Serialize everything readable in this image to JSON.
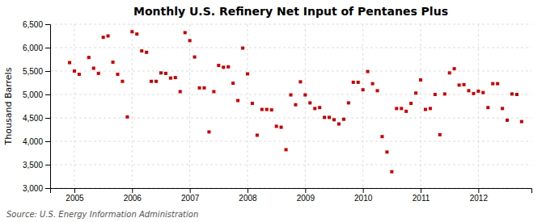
{
  "chart_data": {
    "type": "scatter",
    "title": "Monthly U.S. Refinery Net Input of Pentanes Plus",
    "y_label": "Thousand Barrels",
    "annotations": [
      "Source: U.S. Energy Information Administration"
    ],
    "color": "#cc0000",
    "marker": "square",
    "grid": true,
    "xlim": [
      2004.58,
      2012.92
    ],
    "xticks": [
      2005,
      2006,
      2007,
      2008,
      2009,
      2010,
      2011,
      2012
    ],
    "ylim": [
      3000,
      6500
    ],
    "yticks": [
      {
        "value": 3000,
        "label": "3,000"
      },
      {
        "value": 3500,
        "label": "3,500"
      },
      {
        "value": 4000,
        "label": "4,000"
      },
      {
        "value": 4500,
        "label": "4,500"
      },
      {
        "value": 5000,
        "label": "5,000"
      },
      {
        "value": 5500,
        "label": "5,500"
      },
      {
        "value": 6000,
        "label": "6,000"
      },
      {
        "value": 6500,
        "label": "6,500"
      }
    ],
    "x": [
      2004.917,
      2005.0,
      2005.083,
      2005.25,
      2005.333,
      2005.417,
      2005.5,
      2005.583,
      2005.667,
      2005.75,
      2005.833,
      2005.917,
      2006.0,
      2006.083,
      2006.167,
      2006.25,
      2006.333,
      2006.417,
      2006.5,
      2006.583,
      2006.667,
      2006.75,
      2006.833,
      2006.917,
      2007.0,
      2007.083,
      2007.167,
      2007.25,
      2007.333,
      2007.417,
      2007.5,
      2007.583,
      2007.667,
      2007.75,
      2007.833,
      2007.917,
      2008.0,
      2008.083,
      2008.167,
      2008.25,
      2008.333,
      2008.417,
      2008.5,
      2008.583,
      2008.667,
      2008.75,
      2008.833,
      2008.917,
      2009.0,
      2009.083,
      2009.167,
      2009.25,
      2009.333,
      2009.417,
      2009.5,
      2009.583,
      2009.667,
      2009.75,
      2009.833,
      2009.917,
      2010.0,
      2010.083,
      2010.167,
      2010.25,
      2010.333,
      2010.417,
      2010.5,
      2010.583,
      2010.667,
      2010.75,
      2010.833,
      2010.917,
      2011.0,
      2011.083,
      2011.167,
      2011.25,
      2011.333,
      2011.417,
      2011.5,
      2011.583,
      2011.667,
      2011.75,
      2011.833,
      2011.917,
      2012.0,
      2012.083,
      2012.167,
      2012.25,
      2012.333,
      2012.417,
      2012.5,
      2012.583,
      2012.667,
      2012.75
    ],
    "values": [
      5680,
      5500,
      5430,
      5790,
      5560,
      5450,
      6220,
      6250,
      5690,
      5430,
      5280,
      4520,
      6340,
      6290,
      5930,
      5900,
      5280,
      5280,
      5460,
      5450,
      5350,
      5360,
      5060,
      6320,
      6150,
      5800,
      5140,
      5140,
      4200,
      5060,
      5620,
      5580,
      5590,
      5240,
      4870,
      5990,
      5440,
      4810,
      4130,
      4680,
      4680,
      4670,
      4320,
      4300,
      3820,
      4990,
      4780,
      5270,
      4990,
      4820,
      4700,
      4720,
      4510,
      4510,
      4460,
      4370,
      4470,
      4820,
      5260,
      5260,
      5100,
      5490,
      5230,
      5080,
      4100,
      3770,
      3350,
      4700,
      4700,
      4640,
      4810,
      5030,
      5310,
      4680,
      4700,
      5000,
      4140,
      5010,
      5460,
      5550,
      5200,
      5210,
      5080,
      5020,
      5070,
      5040,
      4720,
      5230,
      5230,
      4700,
      4450,
      5010,
      5000,
      4420
    ]
  }
}
